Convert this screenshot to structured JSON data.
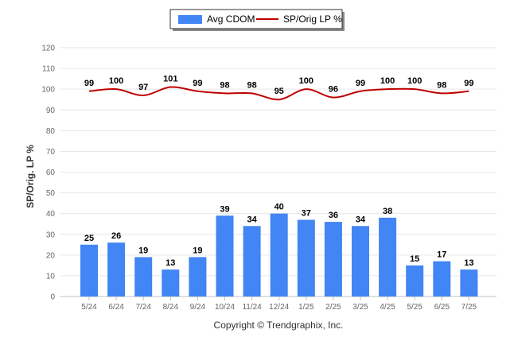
{
  "chart_data": {
    "type": "bar",
    "categories": [
      "5/24",
      "6/24",
      "7/24",
      "8/24",
      "9/24",
      "10/24",
      "11/24",
      "12/24",
      "1/25",
      "2/25",
      "3/25",
      "4/25",
      "5/25",
      "6/25",
      "7/25"
    ],
    "series": [
      {
        "name": "Avg CDOM",
        "kind": "bar",
        "color": "#4285f4",
        "values": [
          25,
          26,
          19,
          13,
          19,
          39,
          34,
          40,
          37,
          36,
          34,
          38,
          15,
          17,
          13
        ]
      },
      {
        "name": "SP/Orig LP %",
        "kind": "line",
        "color": "#c00000",
        "values": [
          99,
          100,
          97,
          101,
          99,
          98,
          98,
          95,
          100,
          96,
          99,
          100,
          100,
          98,
          99
        ]
      }
    ],
    "ylabel": "SP/Orig. LP %",
    "ylim": [
      0,
      120
    ],
    "yticks": [
      0,
      10,
      20,
      30,
      40,
      50,
      60,
      70,
      80,
      90,
      100,
      110,
      120
    ],
    "grid": true,
    "legend_position": "top-center"
  },
  "footer": {
    "copyright": "Copyright © Trendgraphix, Inc."
  }
}
